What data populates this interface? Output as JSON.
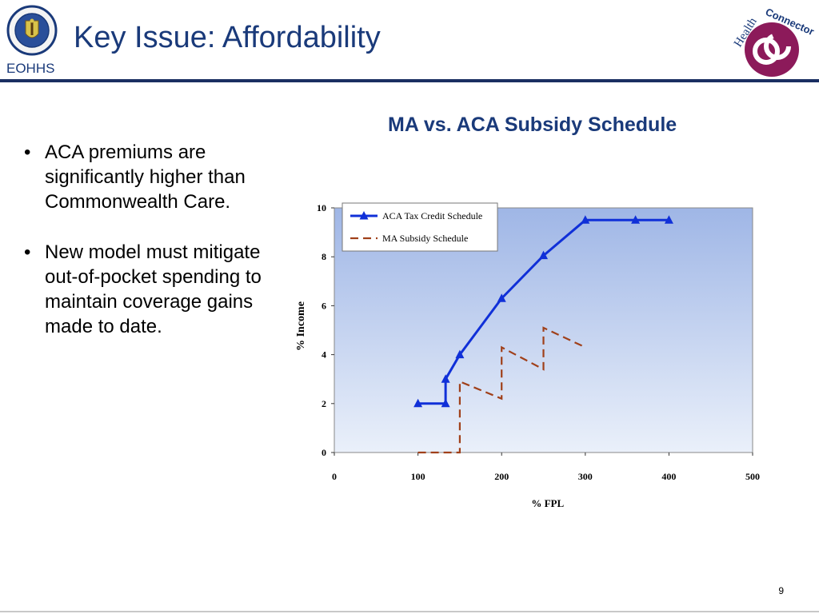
{
  "header": {
    "title": "Key Issue: Affordability",
    "org": "EOHHS",
    "seal_icon": "massachusetts-seal",
    "logo_icon": "health-connector-logo",
    "logo_text_a": "Health",
    "logo_text_b": "Connector"
  },
  "bullets": [
    "ACA premiums are significantly higher than Commonwealth Care.",
    "New model must mitigate out-of-pocket spending to maintain coverage gains made to date."
  ],
  "bullet_char": "•",
  "page_number": "9",
  "colors": {
    "title": "#1a3a7a",
    "aca_series": "#1030d8",
    "ma_series": "#a0401a",
    "plot_bg_top": "#9fb6e6",
    "plot_bg_bottom": "#eaf0fa"
  },
  "chart_data": {
    "type": "line",
    "title": "MA vs. ACA Subsidy Schedule",
    "xlabel": "% FPL",
    "ylabel": "% Income",
    "xlim": [
      0,
      500
    ],
    "ylim": [
      0,
      10
    ],
    "x_ticks": [
      "0",
      "100",
      "200",
      "300",
      "400",
      "500"
    ],
    "y_ticks": [
      "0",
      "2",
      "4",
      "6",
      "8",
      "10"
    ],
    "legend_position": "top-left",
    "series": [
      {
        "name": "ACA Tax Credit Schedule",
        "style": "solid",
        "marker": "triangle",
        "points": [
          [
            100,
            2
          ],
          [
            133,
            2
          ],
          [
            133,
            3
          ],
          [
            150,
            4
          ],
          [
            200,
            6.3
          ],
          [
            250,
            8.05
          ],
          [
            300,
            9.5
          ],
          [
            360,
            9.5
          ],
          [
            400,
            9.5
          ]
        ],
        "marker_points": [
          [
            100,
            2
          ],
          [
            133,
            2
          ],
          [
            133,
            3
          ],
          [
            150,
            4
          ],
          [
            200,
            6.3
          ],
          [
            250,
            8.05
          ],
          [
            300,
            9.5
          ],
          [
            360,
            9.5
          ],
          [
            400,
            9.5
          ]
        ]
      },
      {
        "name": "MA Subsidy Schedule",
        "style": "dashed",
        "marker": "none",
        "points": [
          [
            100,
            0
          ],
          [
            150,
            0
          ],
          [
            150,
            2.9
          ],
          [
            200,
            2.2
          ],
          [
            200,
            4.3
          ],
          [
            250,
            3.4
          ],
          [
            250,
            5.1
          ],
          [
            300,
            4.3
          ]
        ]
      }
    ]
  }
}
